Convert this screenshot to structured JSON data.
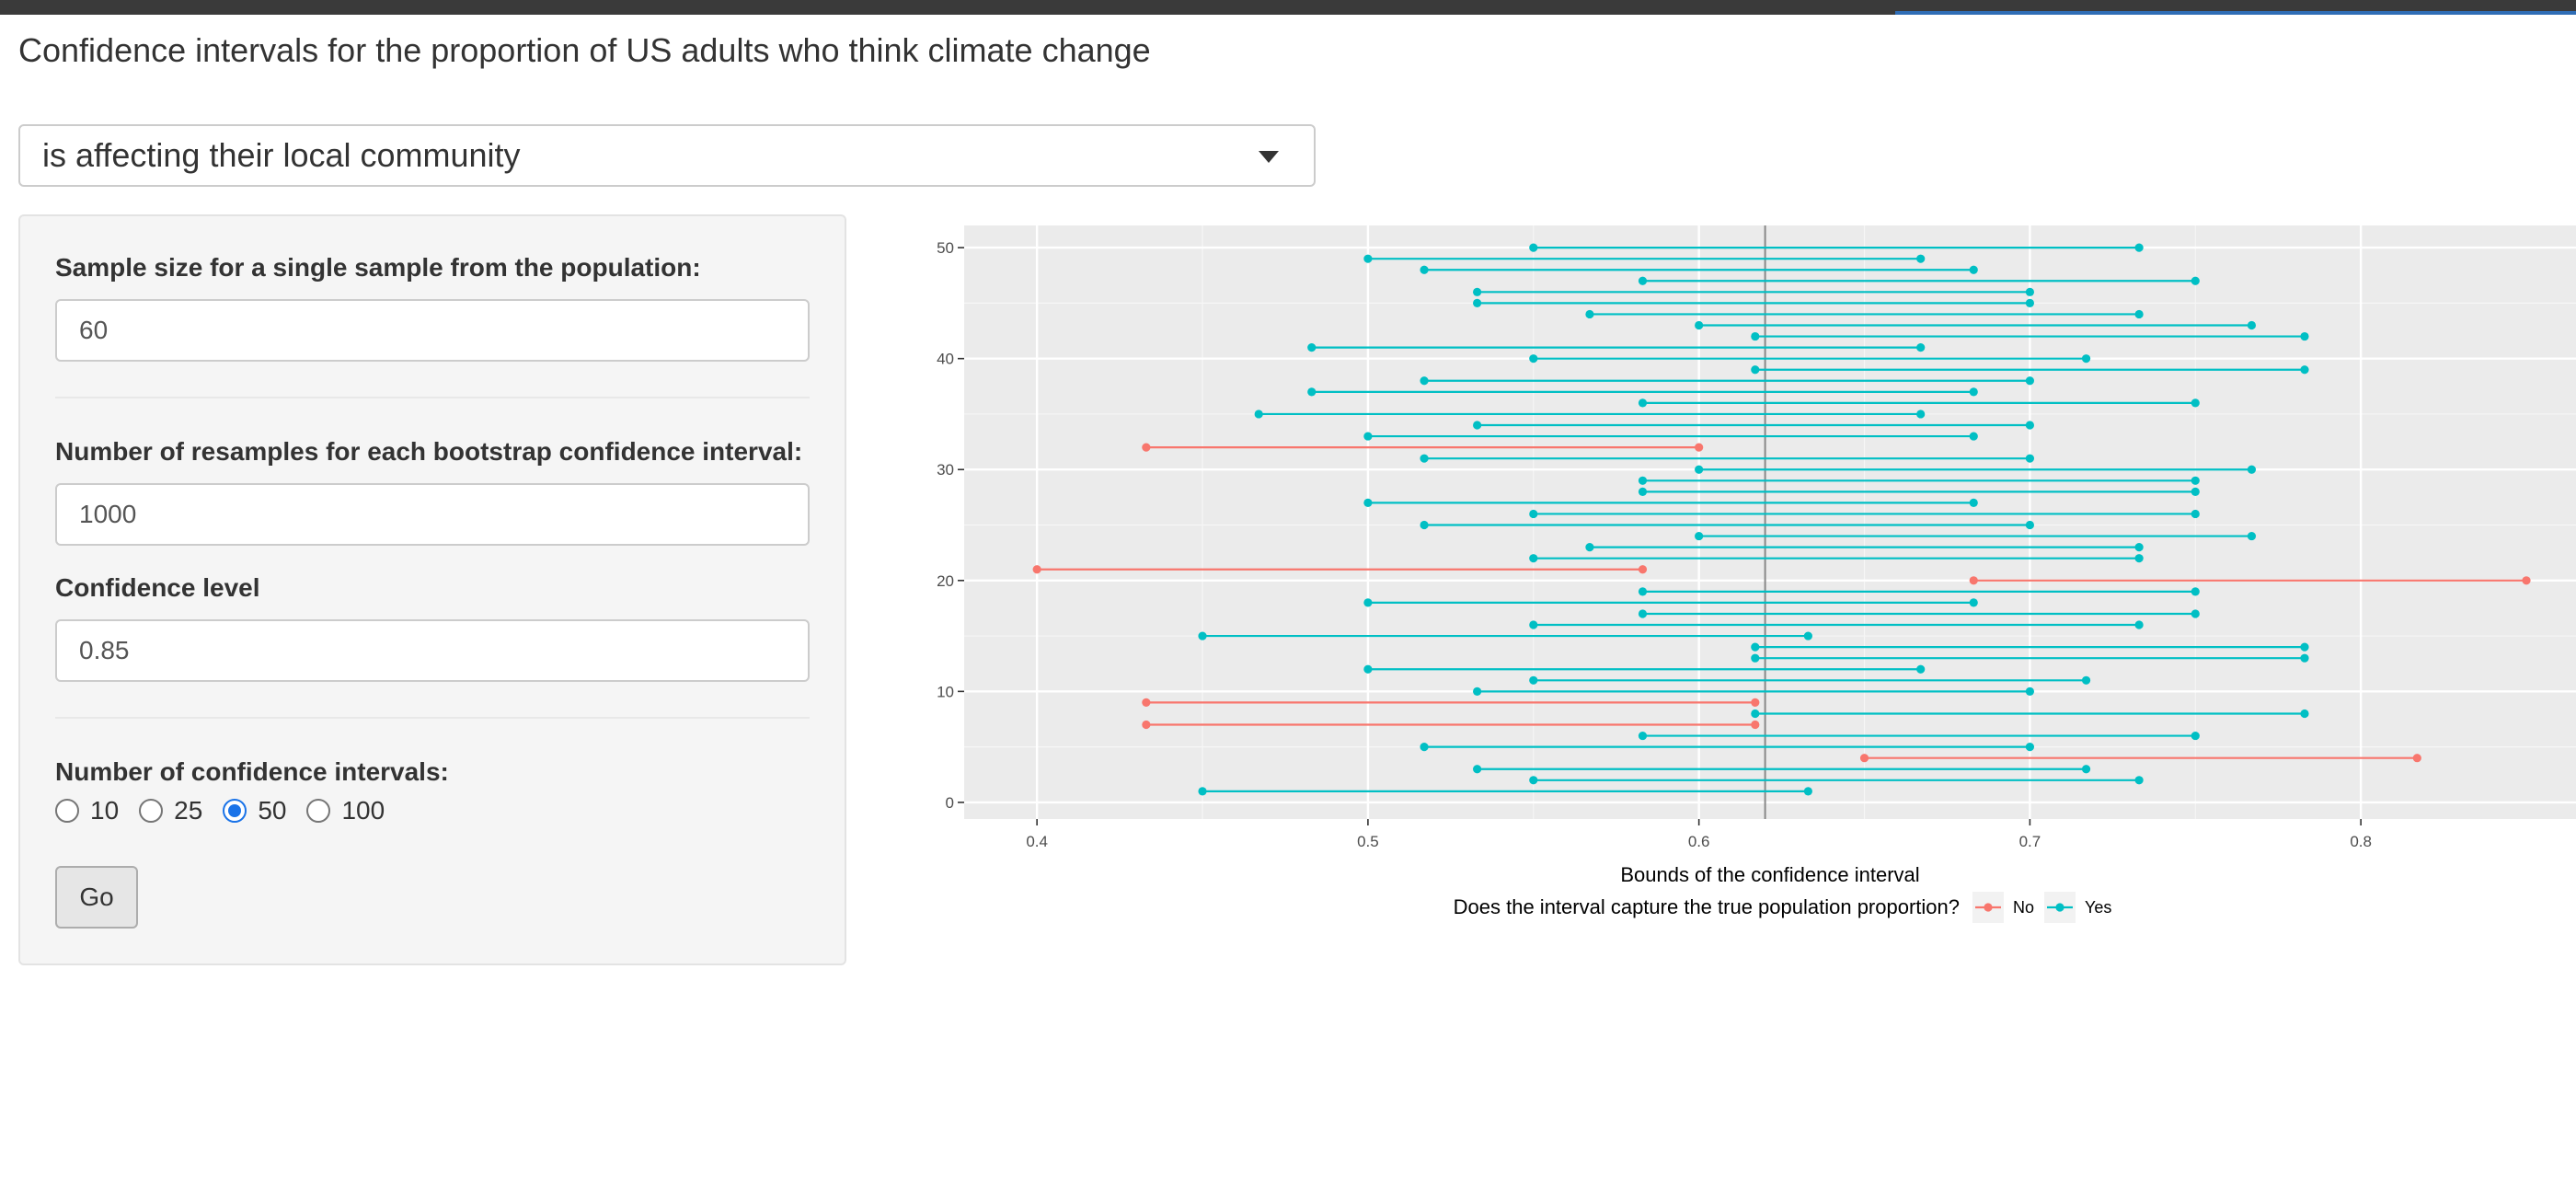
{
  "page": {
    "title": "Confidence intervals for the proportion of US adults who think climate change"
  },
  "dropdown": {
    "selected": "is affecting their local community"
  },
  "sidebar": {
    "sample_size_label": "Sample size for a single sample from the population:",
    "sample_size_value": "60",
    "resamples_label": "Number of resamples for each bootstrap confidence interval:",
    "resamples_value": "1000",
    "confidence_label": "Confidence level",
    "confidence_value": "0.85",
    "num_intervals_label": "Number of confidence intervals:",
    "num_intervals_options": [
      "10",
      "25",
      "50",
      "100"
    ],
    "num_intervals_selected": "50",
    "go_label": "Go"
  },
  "chart_data": {
    "type": "interval",
    "xlabel": "Bounds of the confidence interval",
    "ylabel": "",
    "xlim": [
      0.378,
      0.865
    ],
    "ylim": [
      -1.5,
      52
    ],
    "x_ticks": [
      "0.4",
      "0.5",
      "0.6",
      "0.7",
      "0.8"
    ],
    "x_tick_values": [
      0.4,
      0.5,
      0.6,
      0.7,
      0.8
    ],
    "y_ticks": [
      "0",
      "10",
      "20",
      "30",
      "40",
      "50"
    ],
    "y_tick_values": [
      0,
      10,
      20,
      30,
      40,
      50
    ],
    "true_proportion": 0.62,
    "legend_title": "Does the interval capture the true population proportion?",
    "legend": [
      {
        "label": "No",
        "color": "#F8766D"
      },
      {
        "label": "Yes",
        "color": "#00BFC4"
      }
    ],
    "legend_position": "bottom",
    "grid": true,
    "colors": {
      "No": "#F8766D",
      "Yes": "#00BFC4"
    },
    "intervals": [
      {
        "y": 1,
        "low": 0.45,
        "high": 0.633,
        "captured": "Yes"
      },
      {
        "y": 2,
        "low": 0.55,
        "high": 0.733,
        "captured": "Yes"
      },
      {
        "y": 3,
        "low": 0.533,
        "high": 0.717,
        "captured": "Yes"
      },
      {
        "y": 4,
        "low": 0.65,
        "high": 0.817,
        "captured": "No"
      },
      {
        "y": 5,
        "low": 0.517,
        "high": 0.7,
        "captured": "Yes"
      },
      {
        "y": 6,
        "low": 0.583,
        "high": 0.75,
        "captured": "Yes"
      },
      {
        "y": 7,
        "low": 0.433,
        "high": 0.617,
        "captured": "No"
      },
      {
        "y": 8,
        "low": 0.617,
        "high": 0.783,
        "captured": "Yes"
      },
      {
        "y": 9,
        "low": 0.433,
        "high": 0.617,
        "captured": "No"
      },
      {
        "y": 10,
        "low": 0.533,
        "high": 0.7,
        "captured": "Yes"
      },
      {
        "y": 11,
        "low": 0.55,
        "high": 0.717,
        "captured": "Yes"
      },
      {
        "y": 12,
        "low": 0.5,
        "high": 0.667,
        "captured": "Yes"
      },
      {
        "y": 13,
        "low": 0.617,
        "high": 0.783,
        "captured": "Yes"
      },
      {
        "y": 14,
        "low": 0.617,
        "high": 0.783,
        "captured": "Yes"
      },
      {
        "y": 15,
        "low": 0.45,
        "high": 0.633,
        "captured": "Yes"
      },
      {
        "y": 16,
        "low": 0.55,
        "high": 0.733,
        "captured": "Yes"
      },
      {
        "y": 17,
        "low": 0.583,
        "high": 0.75,
        "captured": "Yes"
      },
      {
        "y": 18,
        "low": 0.5,
        "high": 0.683,
        "captured": "Yes"
      },
      {
        "y": 19,
        "low": 0.583,
        "high": 0.75,
        "captured": "Yes"
      },
      {
        "y": 20,
        "low": 0.683,
        "high": 0.85,
        "captured": "No"
      },
      {
        "y": 21,
        "low": 0.4,
        "high": 0.583,
        "captured": "No"
      },
      {
        "y": 22,
        "low": 0.55,
        "high": 0.733,
        "captured": "Yes"
      },
      {
        "y": 23,
        "low": 0.567,
        "high": 0.733,
        "captured": "Yes"
      },
      {
        "y": 24,
        "low": 0.6,
        "high": 0.767,
        "captured": "Yes"
      },
      {
        "y": 25,
        "low": 0.517,
        "high": 0.7,
        "captured": "Yes"
      },
      {
        "y": 26,
        "low": 0.55,
        "high": 0.75,
        "captured": "Yes"
      },
      {
        "y": 27,
        "low": 0.5,
        "high": 0.683,
        "captured": "Yes"
      },
      {
        "y": 28,
        "low": 0.583,
        "high": 0.75,
        "captured": "Yes"
      },
      {
        "y": 29,
        "low": 0.583,
        "high": 0.75,
        "captured": "Yes"
      },
      {
        "y": 30,
        "low": 0.6,
        "high": 0.767,
        "captured": "Yes"
      },
      {
        "y": 31,
        "low": 0.517,
        "high": 0.7,
        "captured": "Yes"
      },
      {
        "y": 32,
        "low": 0.433,
        "high": 0.6,
        "captured": "No"
      },
      {
        "y": 33,
        "low": 0.5,
        "high": 0.683,
        "captured": "Yes"
      },
      {
        "y": 34,
        "low": 0.533,
        "high": 0.7,
        "captured": "Yes"
      },
      {
        "y": 35,
        "low": 0.467,
        "high": 0.667,
        "captured": "Yes"
      },
      {
        "y": 36,
        "low": 0.583,
        "high": 0.75,
        "captured": "Yes"
      },
      {
        "y": 37,
        "low": 0.483,
        "high": 0.683,
        "captured": "Yes"
      },
      {
        "y": 38,
        "low": 0.517,
        "high": 0.7,
        "captured": "Yes"
      },
      {
        "y": 39,
        "low": 0.617,
        "high": 0.783,
        "captured": "Yes"
      },
      {
        "y": 40,
        "low": 0.55,
        "high": 0.717,
        "captured": "Yes"
      },
      {
        "y": 41,
        "low": 0.483,
        "high": 0.667,
        "captured": "Yes"
      },
      {
        "y": 42,
        "low": 0.617,
        "high": 0.783,
        "captured": "Yes"
      },
      {
        "y": 43,
        "low": 0.6,
        "high": 0.767,
        "captured": "Yes"
      },
      {
        "y": 44,
        "low": 0.567,
        "high": 0.733,
        "captured": "Yes"
      },
      {
        "y": 45,
        "low": 0.533,
        "high": 0.7,
        "captured": "Yes"
      },
      {
        "y": 46,
        "low": 0.533,
        "high": 0.7,
        "captured": "Yes"
      },
      {
        "y": 47,
        "low": 0.583,
        "high": 0.75,
        "captured": "Yes"
      },
      {
        "y": 48,
        "low": 0.517,
        "high": 0.683,
        "captured": "Yes"
      },
      {
        "y": 49,
        "low": 0.5,
        "high": 0.667,
        "captured": "Yes"
      },
      {
        "y": 50,
        "low": 0.55,
        "high": 0.733,
        "captured": "Yes"
      }
    ]
  }
}
